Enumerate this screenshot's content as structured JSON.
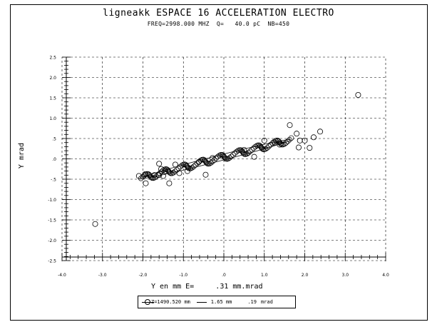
{
  "chart_data": {
    "type": "scatter",
    "title": "ligneakk  ESPACE 16 ACCELERATION ELECTRO",
    "subtitle": "FREQ=2998.000 MHZ  Q=   40.0 pC  NB=450",
    "xlabel": "Y en mm E=     .31 mm.mrad",
    "ylabel": "Y mrad",
    "xlim": [
      -4.0,
      4.0
    ],
    "ylim": [
      -2.5,
      2.5
    ],
    "xticks": [
      -4.0,
      -3.0,
      -2.0,
      -1.0,
      0.0,
      1.0,
      2.0,
      3.0,
      4.0
    ],
    "xtick_labels": [
      "-4.0",
      "-3.0",
      "-2.0",
      "-1.0",
      ".0",
      "1.0",
      "2.0",
      "3.0",
      "4.0"
    ],
    "yticks": [
      2.5,
      2.0,
      1.5,
      1.0,
      0.5,
      0.0,
      -0.5,
      -1.0,
      -1.5,
      -2.0,
      -2.5
    ],
    "ytick_labels": [
      "2.5",
      "2.0",
      "1.5",
      "1.0",
      ".5",
      ".0",
      "-.5",
      "-1.0",
      "-1.5",
      "-2.0",
      "-2.5"
    ],
    "grid": true,
    "legend": {
      "position": "bottom-center",
      "entries": [
        "Z=1490.520 mm",
        "1.65 mm",
        ".19",
        "mrad"
      ]
    },
    "ellipse": {
      "center": [
        0.0,
        0.0
      ],
      "endpoints": [
        [
          -2.05,
          -0.48
        ],
        [
          1.65,
          0.47
        ]
      ],
      "half_width": 0.07
    },
    "points": [
      [
        -3.18,
        -1.6
      ],
      [
        3.32,
        1.57
      ],
      [
        1.63,
        0.83
      ],
      [
        2.38,
        0.67
      ],
      [
        2.22,
        0.53
      ],
      [
        1.8,
        0.62
      ],
      [
        1.88,
        0.45
      ],
      [
        2.0,
        0.45
      ],
      [
        1.85,
        0.28
      ],
      [
        2.12,
        0.27
      ],
      [
        -1.95,
        -0.38
      ],
      [
        -1.93,
        -0.6
      ],
      [
        -2.1,
        -0.42
      ],
      [
        -1.72,
        -0.4
      ],
      [
        -1.55,
        -0.25
      ],
      [
        -1.45,
        -0.3
      ],
      [
        -1.35,
        -0.6
      ],
      [
        -1.2,
        -0.14
      ],
      [
        -0.45,
        -0.39
      ],
      [
        -0.9,
        -0.3
      ],
      [
        -1.1,
        -0.35
      ],
      [
        -0.62,
        -0.08
      ],
      [
        -0.28,
        0.02
      ],
      [
        0.5,
        0.22
      ],
      [
        0.75,
        0.05
      ],
      [
        1.0,
        0.45
      ],
      [
        1.25,
        0.4
      ],
      [
        1.38,
        0.35
      ],
      [
        -1.6,
        -0.4
      ],
      [
        -1.6,
        -0.12
      ],
      [
        -1.5,
        -0.42
      ]
    ]
  }
}
